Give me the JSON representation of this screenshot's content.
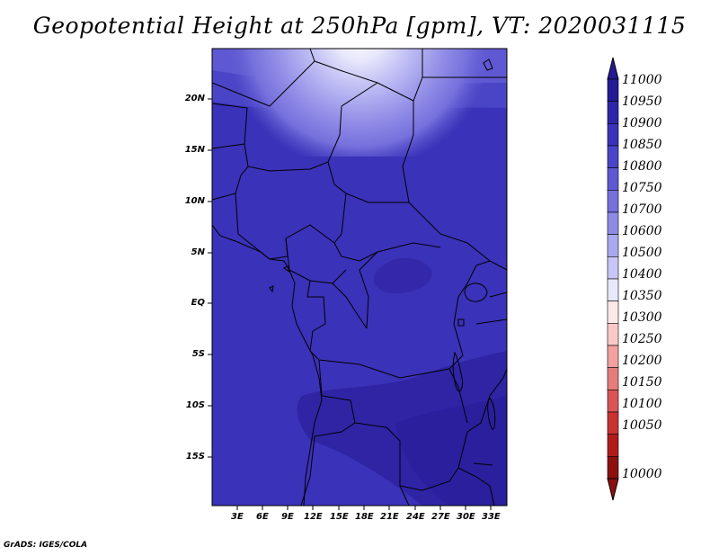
{
  "title": "Geopotential Height at 250hPa [gpm], VT: 2020031115",
  "credit": "GrADS: IGES/COLA",
  "lat_labels": [
    "20N",
    "15N",
    "10N",
    "5N",
    "EQ",
    "5S",
    "10S",
    "15S"
  ],
  "lon_labels": [
    "3E",
    "6E",
    "9E",
    "12E",
    "15E",
    "18E",
    "21E",
    "24E",
    "27E",
    "30E",
    "33E"
  ],
  "colorbar": {
    "levels": [
      "11000",
      "10950",
      "10900",
      "10850",
      "10800",
      "10750",
      "10700",
      "10600",
      "10500",
      "10400",
      "10350",
      "10300",
      "10250",
      "10200",
      "10150",
      "10100",
      "10050",
      "10000"
    ],
    "colors": [
      "#251a96",
      "#2e26a8",
      "#3a32b8",
      "#4a44c6",
      "#5e58d2",
      "#7570dc",
      "#8e8ae6",
      "#aaa8ee",
      "#c8c6f6",
      "#e8e8fc",
      "#fde8e8",
      "#fbc8c8",
      "#f2a0a0",
      "#e67c7c",
      "#d85656",
      "#c83232",
      "#b01c1c",
      "#8c1010"
    ]
  },
  "map": {
    "field": "geopotential height 250hPa",
    "dominant_color": "#3a32b8",
    "colors": {
      "deep": "#251a96",
      "main": "#3a32b8",
      "mid": "#4a44c6",
      "light": "#7570dc",
      "lighter": "#aaa8ee",
      "palest": "#e8e8fc"
    }
  }
}
